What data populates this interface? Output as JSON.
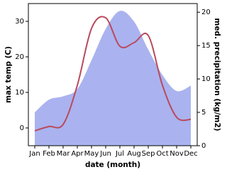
{
  "chart_data": {
    "type": "line",
    "x_label": "date (month)",
    "y_label": "max temp (C)",
    "y2_label": "med. precipitation (kg/m2)",
    "categories": [
      "Jan",
      "Feb",
      "Mar",
      "Apr",
      "May",
      "Jun",
      "Jul",
      "Aug",
      "Sep",
      "Oct",
      "Nov",
      "Dec"
    ],
    "series": [
      {
        "name": "med. precipitation",
        "type": "area",
        "axis": "y2",
        "color": "#aab3ef",
        "values": [
          5,
          6.9,
          7.4,
          8.5,
          12.8,
          17.5,
          20.2,
          18.6,
          14.4,
          10.6,
          8.2,
          9
        ]
      },
      {
        "name": "max temp",
        "type": "line",
        "axis": "y",
        "color": "#b94a5e",
        "values": [
          -0.8,
          0.4,
          1,
          12,
          28,
          31,
          23,
          24,
          26,
          12,
          3,
          2.4
        ]
      }
    ],
    "ylim": [
      -5,
      35
    ],
    "yticks": [
      0,
      10,
      20,
      30
    ],
    "y2lim": [
      0,
      21.3
    ],
    "y2ticks": [
      0,
      5,
      10,
      15,
      20
    ]
  }
}
